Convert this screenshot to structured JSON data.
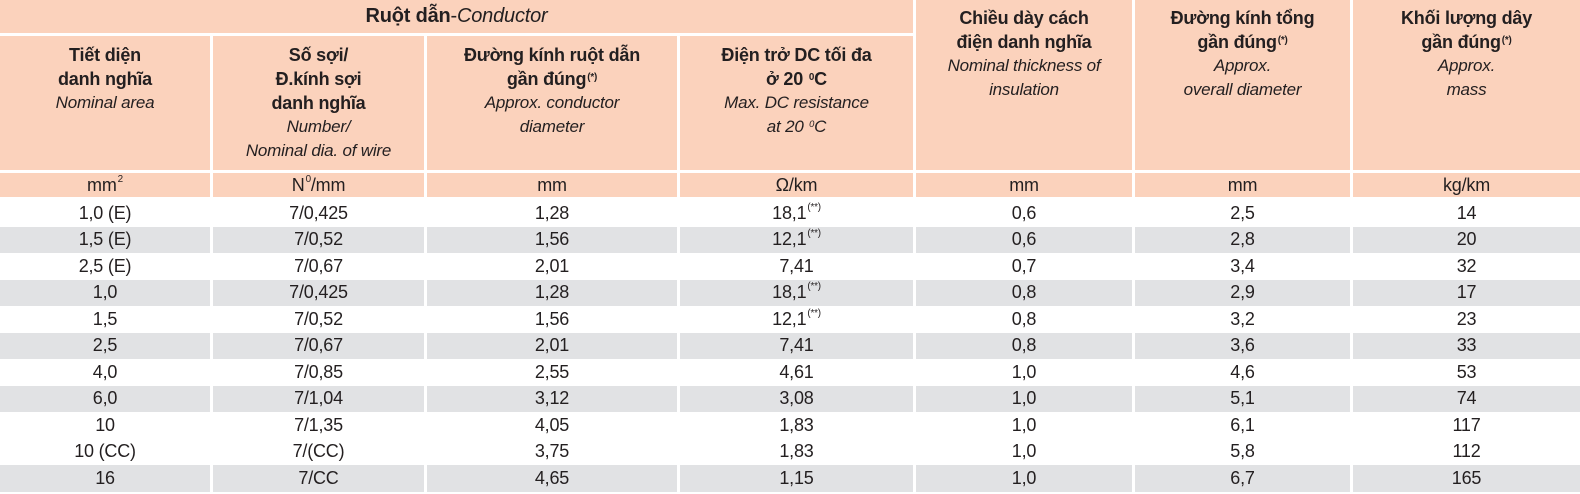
{
  "colors": {
    "header_bg": "#fbd2bc",
    "row_bg": "#ffffff",
    "row_alt_bg": "#e1e2e4",
    "separator": "#ffffff",
    "text": "#231f20"
  },
  "table": {
    "group_header": {
      "vi": "Ruột dẫn",
      "sep": " - ",
      "en": "Conductor"
    },
    "columns": [
      {
        "vi": [
          "Tiết diện",
          "danh nghĩa"
        ],
        "en": [
          "Nominal area"
        ],
        "unit": "mm<sup>2</sup>"
      },
      {
        "vi": [
          "Số sợi/",
          "Đ.kính sợi",
          "danh nghĩa"
        ],
        "en": [
          "Number/",
          "Nominal dia. of wire"
        ],
        "unit": "N<sup>0</sup>/mm"
      },
      {
        "vi": [
          "Đường kính ruột dẫn",
          "gần đúng(*)"
        ],
        "en": [
          "Approx. conductor",
          "diameter"
        ],
        "unit": "mm"
      },
      {
        "vi": [
          "Điện trở DC tối đa",
          "ở 20 <sup>0</sup>C"
        ],
        "en": [
          "Max. DC resistance",
          "at 20 <sup>0</sup>C"
        ],
        "unit": "Ω/km"
      },
      {
        "vi": [
          "Chiều dày cách",
          "điện danh nghĩa"
        ],
        "en": [
          "Nominal thickness of",
          "insulation"
        ],
        "unit": "mm"
      },
      {
        "vi": [
          "Đường kính tổng",
          "gần đúng(*)"
        ],
        "en": [
          "Approx.",
          "overall diameter"
        ],
        "unit": "mm"
      },
      {
        "vi": [
          "Khối lượng dây",
          "gần đúng(*)"
        ],
        "en": [
          "Approx.",
          "mass"
        ],
        "unit": "kg/km"
      }
    ],
    "rows": [
      {
        "shaded": false,
        "cells": [
          "1,0 (E)",
          "7/0,425",
          "1,28",
          "18,1 (**)",
          "0,6",
          "2,5",
          "14"
        ]
      },
      {
        "shaded": true,
        "cells": [
          "1,5 (E)",
          "7/0,52",
          "1,56",
          "12,1 (**)",
          "0,6",
          "2,8",
          "20"
        ]
      },
      {
        "shaded": false,
        "cells": [
          "2,5 (E)",
          "7/0,67",
          "2,01",
          "7,41",
          "0,7",
          "3,4",
          "32"
        ]
      },
      {
        "shaded": true,
        "cells": [
          "1,0",
          "7/0,425",
          "1,28",
          "18,1 (**)",
          "0,8",
          "2,9",
          "17"
        ]
      },
      {
        "shaded": false,
        "cells": [
          "1,5",
          "7/0,52",
          "1,56",
          "12,1 (**)",
          "0,8",
          "3,2",
          "23"
        ]
      },
      {
        "shaded": true,
        "cells": [
          "2,5",
          "7/0,67",
          "2,01",
          "7,41",
          "0,8",
          "3,6",
          "33"
        ]
      },
      {
        "shaded": false,
        "cells": [
          "4,0",
          "7/0,85",
          "2,55",
          "4,61",
          "1,0",
          "4,6",
          "53"
        ]
      },
      {
        "shaded": true,
        "cells": [
          "6,0",
          "7/1,04",
          "3,12",
          "3,08",
          "1,0",
          "5,1",
          "74"
        ]
      },
      {
        "shaded": false,
        "cells": [
          "10",
          "7/1,35",
          "4,05",
          "1,83",
          "1,0",
          "6,1",
          "117"
        ]
      },
      {
        "shaded": false,
        "cells": [
          "10 (CC)",
          "7/(CC)",
          "3,75",
          "1,83",
          "1,0",
          "5,8",
          "112"
        ]
      },
      {
        "shaded": true,
        "cells": [
          "16",
          "7/CC",
          "4,65",
          "1,15",
          "1,0",
          "6,7",
          "165"
        ]
      }
    ]
  }
}
